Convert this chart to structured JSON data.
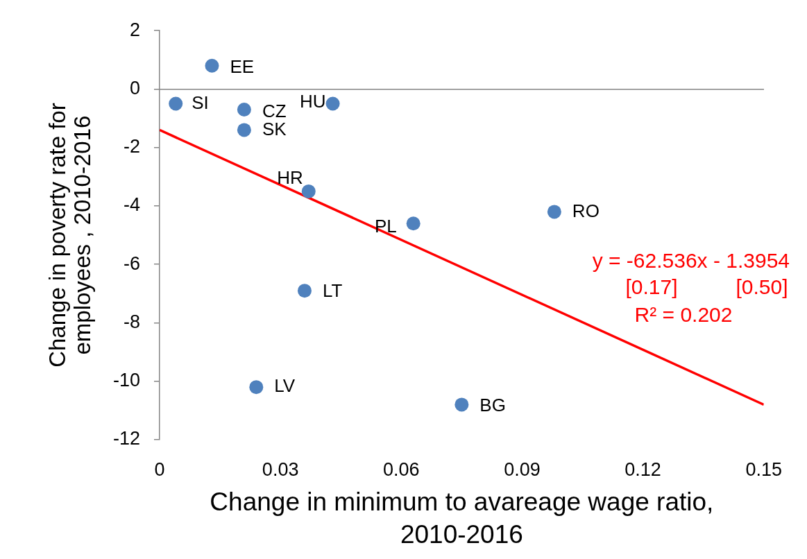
{
  "chart_data": {
    "type": "scatter",
    "xlabel": "Change in minimum to avareage wage ratio, 2010-2016",
    "ylabel": "Change in poverty rate for employees , 2010-2016",
    "series": [
      {
        "type": "scatter",
        "color": "#4f81bd",
        "marker": "circle",
        "x": [
          0.013,
          0.004,
          0.021,
          0.021,
          0.043,
          0.037,
          0.063,
          0.098,
          0.036,
          0.024,
          0.075
        ],
        "values": [
          0.8,
          -0.5,
          -0.7,
          -1.4,
          -0.5,
          -3.5,
          -4.6,
          -4.2,
          -6.9,
          -10.2,
          -10.8
        ]
      },
      {
        "type": "line",
        "color": "#ff0000",
        "marker": "none",
        "x": [
          0,
          0.15
        ],
        "values": [
          -1.4,
          -10.8
        ]
      }
    ],
    "xlim": [
      0,
      0.15
    ],
    "xticks": [
      0,
      0.03,
      0.06,
      0.09,
      0.12,
      0.15
    ],
    "ylim": [
      -12,
      2
    ],
    "yticks": [
      -12,
      -10,
      -8,
      -6,
      -4,
      -2,
      0,
      2
    ],
    "legend": false,
    "annotations": [
      {
        "text": "EE",
        "x": 0.013,
        "y": 0.8
      },
      {
        "text": "SI",
        "x": 0.004,
        "y": -0.5
      },
      {
        "text": "CZ",
        "x": 0.021,
        "y": -0.7
      },
      {
        "text": "SK",
        "x": 0.021,
        "y": -1.4
      },
      {
        "text": "HU",
        "x": 0.043,
        "y": -0.5
      },
      {
        "text": "HR",
        "x": 0.037,
        "y": -3.5
      },
      {
        "text": "PL",
        "x": 0.063,
        "y": -4.6
      },
      {
        "text": "RO",
        "x": 0.098,
        "y": -4.2
      },
      {
        "text": "LT",
        "x": 0.036,
        "y": -6.9
      },
      {
        "text": "LV",
        "x": 0.024,
        "y": -10.2
      },
      {
        "text": "BG",
        "x": 0.075,
        "y": -10.8
      },
      "y = -62.536x - 1.3954",
      "[0.17]",
      "[0.50]",
      "R² = 0.202"
    ]
  }
}
